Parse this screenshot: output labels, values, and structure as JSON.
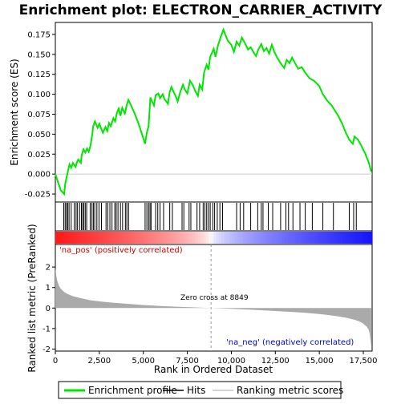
{
  "chart_data": [
    {
      "type": "line",
      "title": "Enrichment plot: ELECTRON_CARRIER_ACTIVITY",
      "ylabel": "Enrichment score (ES)",
      "xlim": [
        0,
        18000
      ],
      "ylim": [
        -0.035,
        0.19
      ],
      "yticks": [
        "-0.025",
        "0.000",
        "0.025",
        "0.050",
        "0.075",
        "0.100",
        "0.125",
        "0.150",
        "0.175"
      ],
      "ytick_values": [
        -0.025,
        0,
        0.025,
        0.05,
        0.075,
        0.1,
        0.125,
        0.15,
        0.175
      ],
      "series": [
        {
          "name": "Enrichment profile",
          "color": "#00e600",
          "x": [
            0,
            300,
            500,
            560,
            700,
            800,
            900,
            1000,
            1150,
            1250,
            1300,
            1450,
            1500,
            1600,
            1700,
            1800,
            1900,
            2000,
            2100,
            2150,
            2250,
            2400,
            2500,
            2600,
            2700,
            2850,
            2950,
            3050,
            3150,
            3300,
            3400,
            3500,
            3600,
            3700,
            3800,
            3950,
            4050,
            4150,
            4300,
            4500,
            4700,
            5000,
            5100,
            5200,
            5300,
            5400,
            5500,
            5600,
            5700,
            5850,
            5950,
            6100,
            6200,
            6400,
            6500,
            6600,
            6700,
            6850,
            6950,
            7100,
            7250,
            7350,
            7500,
            7650,
            7800,
            7950,
            8100,
            8200,
            8350,
            8450,
            8600,
            8700,
            8800,
            8900,
            9000,
            9100,
            9250,
            9400,
            9550,
            9650,
            9800,
            10000,
            10150,
            10300,
            10450,
            10600,
            10800,
            10950,
            11100,
            11250,
            11400,
            11550,
            11700,
            11850,
            12000,
            12150,
            12300,
            12450,
            12600,
            12800,
            13000,
            13150,
            13300,
            13450,
            13600,
            13800,
            14000,
            14200,
            14450,
            14700,
            15000,
            15200,
            15450,
            15700,
            15900,
            16100,
            16300,
            16500,
            16700,
            16900,
            17000,
            17200,
            17400,
            17600,
            17800,
            17950
          ],
          "values": [
            0.0,
            -0.02,
            -0.025,
            -0.012,
            0.002,
            0.012,
            0.008,
            0.014,
            0.009,
            0.016,
            0.018,
            0.014,
            0.024,
            0.031,
            0.027,
            0.032,
            0.028,
            0.036,
            0.05,
            0.06,
            0.066,
            0.058,
            0.063,
            0.057,
            0.052,
            0.059,
            0.054,
            0.064,
            0.06,
            0.07,
            0.066,
            0.077,
            0.082,
            0.073,
            0.083,
            0.076,
            0.086,
            0.093,
            0.086,
            0.076,
            0.065,
            0.045,
            0.038,
            0.052,
            0.06,
            0.096,
            0.091,
            0.086,
            0.099,
            0.101,
            0.095,
            0.1,
            0.094,
            0.088,
            0.103,
            0.109,
            0.104,
            0.097,
            0.091,
            0.103,
            0.112,
            0.106,
            0.101,
            0.117,
            0.112,
            0.104,
            0.098,
            0.112,
            0.106,
            0.127,
            0.137,
            0.131,
            0.147,
            0.152,
            0.157,
            0.147,
            0.162,
            0.172,
            0.181,
            0.175,
            0.167,
            0.162,
            0.153,
            0.166,
            0.161,
            0.171,
            0.163,
            0.156,
            0.159,
            0.153,
            0.148,
            0.157,
            0.163,
            0.154,
            0.158,
            0.151,
            0.162,
            0.153,
            0.146,
            0.139,
            0.133,
            0.143,
            0.139,
            0.146,
            0.14,
            0.132,
            0.134,
            0.127,
            0.12,
            0.117,
            0.11,
            0.1,
            0.092,
            0.086,
            0.079,
            0.072,
            0.063,
            0.052,
            0.043,
            0.038,
            0.047,
            0.043,
            0.035,
            0.026,
            0.015,
            0.003
          ]
        }
      ]
    },
    {
      "type": "scatter",
      "name": "Hits",
      "hit_positions": [
        480,
        560,
        640,
        700,
        780,
        900,
        1080,
        1180,
        1260,
        1380,
        1480,
        1550,
        1620,
        1700,
        1780,
        1980,
        2080,
        2160,
        2240,
        2360,
        2480,
        2620,
        2880,
        2980,
        3100,
        3220,
        3380,
        3460,
        3560,
        3700,
        3820,
        3980,
        4060,
        4160,
        5100,
        5200,
        5300,
        5380,
        5440,
        5700,
        5820,
        5950,
        6150,
        6500,
        6650,
        7200,
        7300,
        7600,
        7700,
        8050,
        8200,
        8400,
        8500,
        8600,
        8700,
        8800,
        8950,
        9050,
        9200,
        9350,
        9500,
        10300,
        10500,
        10700,
        11100,
        11500,
        11700,
        11800,
        12100,
        12350,
        12800,
        13100,
        13250,
        13500,
        13900,
        14200,
        14600,
        15200,
        15800,
        16700,
        16950,
        17100
      ]
    },
    {
      "type": "area",
      "name": "Ranking metric scores",
      "ylabel": "Ranked list metric (PreRanked)",
      "xlabel": "Rank in Ordered Dataset",
      "xlim": [
        0,
        18000
      ],
      "ylim": [
        -2.1,
        3.1
      ],
      "xticks": [
        "0",
        "2,500",
        "5,000",
        "7,500",
        "10,000",
        "12,500",
        "15,000",
        "17,500"
      ],
      "xtick_values": [
        0,
        2500,
        5000,
        7500,
        10000,
        12500,
        15000,
        17500
      ],
      "yticks": [
        "-2",
        "-1",
        "0",
        "1",
        "2"
      ],
      "ytick_values": [
        -2,
        -1,
        0,
        1,
        2
      ],
      "color": "#aaaaaa",
      "x": [
        0,
        50,
        100,
        200,
        300,
        500,
        700,
        1000,
        1500,
        2000,
        3000,
        4000,
        5000,
        6000,
        7000,
        8000,
        8849,
        10000,
        11000,
        12000,
        13000,
        14000,
        15000,
        15500,
        16000,
        16500,
        17000,
        17300,
        17500,
        17700,
        17800,
        17850,
        17900,
        17950
      ],
      "values": [
        1.95,
        1.6,
        1.35,
        1.1,
        0.95,
        0.78,
        0.68,
        0.58,
        0.47,
        0.38,
        0.28,
        0.21,
        0.15,
        0.1,
        0.06,
        0.03,
        0.0,
        -0.04,
        -0.08,
        -0.12,
        -0.17,
        -0.22,
        -0.29,
        -0.34,
        -0.4,
        -0.47,
        -0.57,
        -0.66,
        -0.76,
        -0.92,
        -1.05,
        -1.2,
        -1.5,
        -1.9
      ],
      "zero_cross": 8849
    }
  ],
  "annotations": {
    "pos_label": "'na_pos' (positively correlated)",
    "neg_label": "'na_neg' (negatively correlated)",
    "zero_cross_label": "Zero cross at 8849"
  },
  "legend": {
    "items": [
      {
        "label": "Enrichment profile",
        "color": "#00e600"
      },
      {
        "label": "Hits",
        "color": "#000000"
      },
      {
        "label": "Ranking metric scores",
        "color": "#aaaaaa"
      }
    ]
  }
}
